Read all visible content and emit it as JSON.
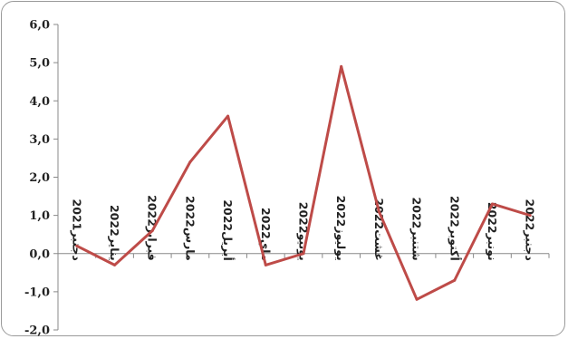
{
  "chart_data": {
    "type": "line",
    "title": "",
    "xlabel": "",
    "ylabel": "",
    "ylim": [
      -2.0,
      6.0
    ],
    "y_ticks": [
      "-2,0",
      "-1,0",
      "0,0",
      "1,0",
      "2,0",
      "3,0",
      "4,0",
      "5,0",
      "6,0"
    ],
    "categories": [
      "دجنبر2021",
      "يناير2022",
      "فبراير2022",
      "مارس2022",
      "أبريل2022",
      "ماي2022",
      "يونيو2022",
      "يوليوز2022",
      "غشت2022",
      "شتنبر2022",
      "أكتوبر2022",
      "نونبر2022",
      "دجنبر2022"
    ],
    "series": [
      {
        "values": [
          0.2,
          -0.3,
          0.6,
          2.4,
          3.6,
          -0.3,
          0.0,
          4.9,
          1.1,
          -1.2,
          -0.7,
          1.3,
          1.0
        ]
      }
    ],
    "line_color": "#be4b48",
    "grid": false,
    "legend": "none"
  }
}
